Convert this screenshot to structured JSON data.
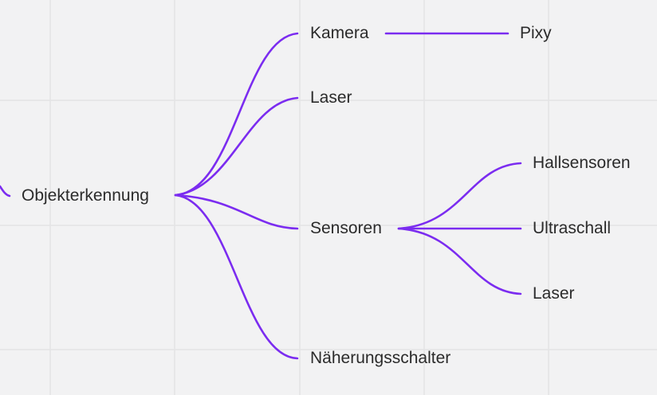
{
  "colors": {
    "background": "#f2f2f3",
    "grid": "#e3e3e5",
    "edge": "#7b2cf0",
    "text": "#2b2b2b"
  },
  "mindmap": {
    "root": {
      "label": "Objekterkennung"
    },
    "branches": [
      {
        "label": "Kamera",
        "children": [
          {
            "label": "Pixy"
          }
        ]
      },
      {
        "label": "Laser",
        "children": []
      },
      {
        "label": "Sensoren",
        "children": [
          {
            "label": "Hallsensoren"
          },
          {
            "label": "Ultraschall"
          },
          {
            "label": "Laser"
          }
        ]
      },
      {
        "label": "Näherungsschalter",
        "children": []
      }
    ]
  }
}
